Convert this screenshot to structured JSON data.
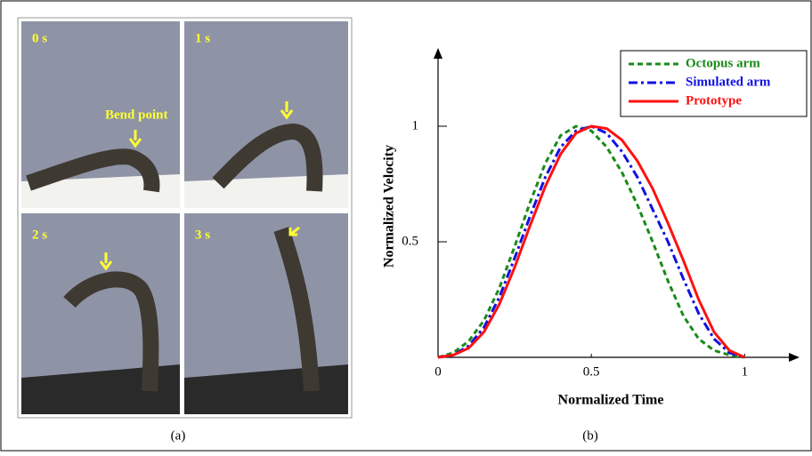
{
  "panel_a": {
    "frames": [
      "0 s",
      "1 s",
      "2 s",
      "3 s"
    ],
    "annotation": "Bend point",
    "caption": "(a)"
  },
  "chart_data": {
    "type": "line",
    "caption": "(b)",
    "x_label": "Normalized Time",
    "y_label": "Normalized Velocity",
    "x": [
      0,
      0.05,
      0.1,
      0.15,
      0.2,
      0.25,
      0.3,
      0.35,
      0.4,
      0.45,
      0.5,
      0.55,
      0.6,
      0.65,
      0.7,
      0.75,
      0.8,
      0.85,
      0.9,
      0.95,
      1
    ],
    "series": [
      {
        "name": "Octopus arm",
        "color": "#1a8a1a",
        "dash": "dashed",
        "values": [
          0,
          0.02,
          0.07,
          0.16,
          0.3,
          0.48,
          0.67,
          0.84,
          0.96,
          1.0,
          0.98,
          0.91,
          0.8,
          0.66,
          0.5,
          0.33,
          0.18,
          0.08,
          0.03,
          0.01,
          0
        ]
      },
      {
        "name": "Simulated arm",
        "color": "#1010e0",
        "dash": "dashdot",
        "values": [
          0,
          0.01,
          0.05,
          0.13,
          0.26,
          0.43,
          0.61,
          0.78,
          0.91,
          0.98,
          1.0,
          0.97,
          0.89,
          0.78,
          0.64,
          0.5,
          0.34,
          0.19,
          0.08,
          0.02,
          0
        ]
      },
      {
        "name": "Prototype",
        "color": "#ff1010",
        "dash": "solid",
        "values": [
          0,
          0.01,
          0.04,
          0.11,
          0.23,
          0.39,
          0.57,
          0.74,
          0.88,
          0.97,
          1.0,
          0.99,
          0.94,
          0.85,
          0.73,
          0.58,
          0.42,
          0.25,
          0.11,
          0.03,
          0
        ]
      }
    ],
    "xlim": [
      0,
      1.15
    ],
    "ylim": [
      0,
      1.3
    ],
    "xticks": [
      0,
      0.5,
      1
    ],
    "yticks": [
      0.5,
      1
    ]
  }
}
